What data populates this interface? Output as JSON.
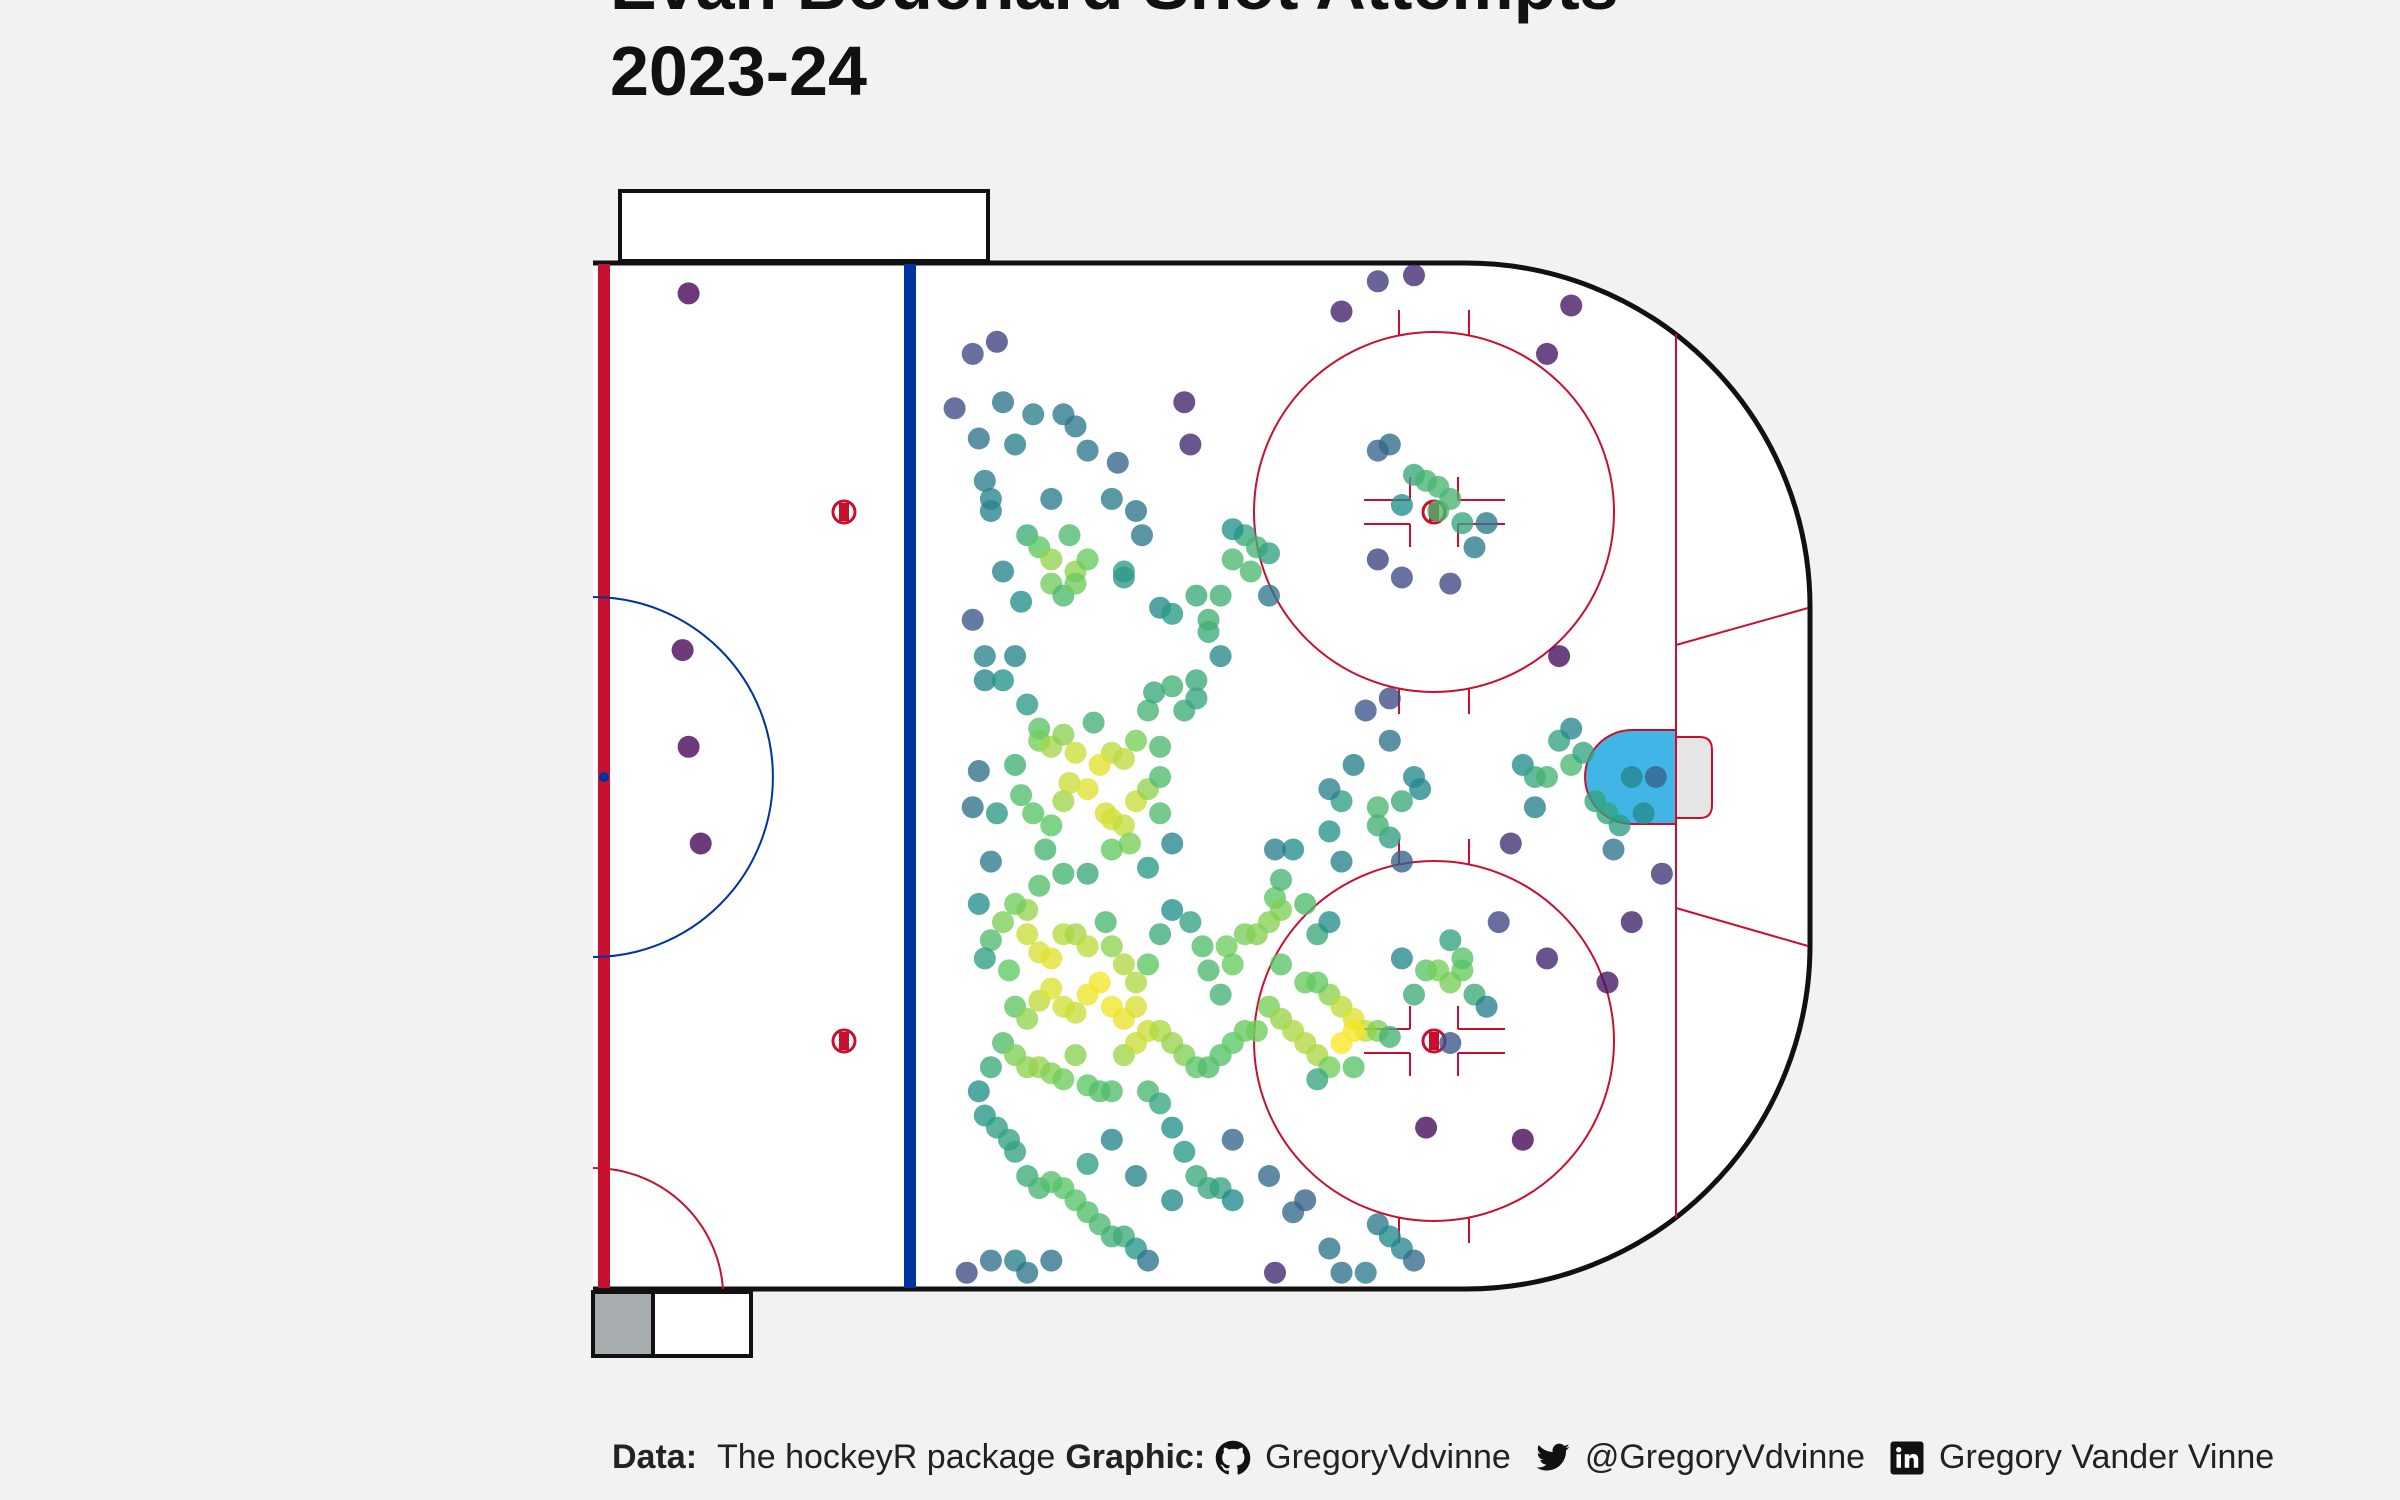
{
  "title_lines": [
    "Evan Bouchard Shot Attempts",
    "2023-24"
  ],
  "caption": {
    "data_label": "Data:",
    "data_value": "The hockeyR package",
    "graphic_label": "Graphic:",
    "github": "GregoryVdvinne",
    "twitter": "@GregoryVdvinne",
    "linkedin": "Gregory Vander Vinne"
  },
  "colors": {
    "background": "#f2f2f2",
    "ice": "#ffffff",
    "red_line": "#c8102e",
    "blue_line": "#0033a0",
    "crease": "#41b6e6",
    "boards": "#111111",
    "viridis_low": "#440154",
    "viridis_high": "#fde725"
  },
  "icons": [
    "github-icon",
    "twitter-icon",
    "linkedin-icon"
  ],
  "chart_data": {
    "type": "scatter",
    "x_unit": "ft",
    "y_unit": "ft",
    "xlim": [
      0,
      100
    ],
    "ylim": [
      -42.5,
      42.5
    ],
    "color_encoding": "local shot density (viridis)",
    "points": [
      [
        7,
        40
      ],
      [
        7,
        2.5
      ],
      [
        8,
        -5.5
      ],
      [
        6.5,
        10.5
      ],
      [
        29,
        30.5
      ],
      [
        30.5,
        35
      ],
      [
        32.5,
        36
      ],
      [
        31,
        28
      ],
      [
        34,
        27.5
      ],
      [
        31.5,
        24.5
      ],
      [
        32,
        23
      ],
      [
        33,
        31
      ],
      [
        35.5,
        30
      ],
      [
        38,
        30
      ],
      [
        39,
        29
      ],
      [
        37,
        23
      ],
      [
        40,
        27
      ],
      [
        42.5,
        26
      ],
      [
        38.5,
        20
      ],
      [
        35,
        20
      ],
      [
        36,
        19
      ],
      [
        37,
        18
      ],
      [
        39,
        17
      ],
      [
        44.5,
        20
      ],
      [
        48,
        31
      ],
      [
        48.5,
        27.5
      ],
      [
        53,
        20
      ],
      [
        54,
        19
      ],
      [
        52,
        20.5
      ],
      [
        55,
        18.5
      ],
      [
        42,
        23
      ],
      [
        44,
        22
      ],
      [
        32,
        22
      ],
      [
        33,
        17
      ],
      [
        34.5,
        14.5
      ],
      [
        37,
        16
      ],
      [
        38,
        15
      ],
      [
        39,
        16
      ],
      [
        40,
        18
      ],
      [
        43,
        17
      ],
      [
        43,
        16.5
      ],
      [
        46,
        14
      ],
      [
        47,
        13.5
      ],
      [
        30.5,
        13
      ],
      [
        31.5,
        10
      ],
      [
        31.5,
        8
      ],
      [
        33,
        8
      ],
      [
        34,
        10
      ],
      [
        35,
        6
      ],
      [
        36,
        4
      ],
      [
        36,
        3
      ],
      [
        37,
        2.5
      ],
      [
        38,
        3.5
      ],
      [
        40.5,
        4.5
      ],
      [
        42,
        2
      ],
      [
        43,
        1.5
      ],
      [
        44,
        3
      ],
      [
        46,
        2.5
      ],
      [
        45,
        5.5
      ],
      [
        45.5,
        7
      ],
      [
        47,
        7.5
      ],
      [
        48,
        5.5
      ],
      [
        49,
        6.5
      ],
      [
        49,
        8
      ],
      [
        51,
        10
      ],
      [
        50,
        12
      ],
      [
        50,
        13
      ],
      [
        51,
        15
      ],
      [
        49,
        15
      ],
      [
        52,
        18
      ],
      [
        53.5,
        17
      ],
      [
        55,
        15
      ],
      [
        31,
        0.5
      ],
      [
        30.5,
        -2.5
      ],
      [
        32,
        -7
      ],
      [
        32.5,
        -3
      ],
      [
        34,
        1
      ],
      [
        34.5,
        -1.5
      ],
      [
        35.5,
        -3
      ],
      [
        36.5,
        -6
      ],
      [
        37,
        -4
      ],
      [
        38,
        -2
      ],
      [
        38.5,
        -0.5
      ],
      [
        39,
        2
      ],
      [
        40,
        -1
      ],
      [
        41,
        1
      ],
      [
        41.5,
        -3
      ],
      [
        42,
        -3.5
      ],
      [
        43,
        -4
      ],
      [
        43.5,
        -5.5
      ],
      [
        44,
        -2
      ],
      [
        45,
        -1
      ],
      [
        46,
        0
      ],
      [
        46,
        -3
      ],
      [
        47,
        -5.5
      ],
      [
        45,
        -7.5
      ],
      [
        42,
        -6
      ],
      [
        40,
        -8
      ],
      [
        38,
        -8
      ],
      [
        36,
        -9
      ],
      [
        35,
        -11
      ],
      [
        33,
        -12
      ],
      [
        32,
        -13.5
      ],
      [
        31,
        -10.5
      ],
      [
        31.5,
        -15
      ],
      [
        34,
        -10.5
      ],
      [
        35,
        -13
      ],
      [
        36,
        -14.5
      ],
      [
        37,
        -15
      ],
      [
        38,
        -13
      ],
      [
        39,
        -13
      ],
      [
        40,
        -14
      ],
      [
        41.5,
        -12
      ],
      [
        42,
        -14
      ],
      [
        43,
        -15.5
      ],
      [
        44,
        -17
      ],
      [
        45,
        -15.5
      ],
      [
        46,
        -13
      ],
      [
        47,
        -11
      ],
      [
        48.5,
        -12
      ],
      [
        49.5,
        -14
      ],
      [
        50,
        -16
      ],
      [
        51,
        -18
      ],
      [
        51.5,
        -14
      ],
      [
        52,
        -15.5
      ],
      [
        53,
        -13
      ],
      [
        54,
        -13
      ],
      [
        55,
        -12
      ],
      [
        55.5,
        -10
      ],
      [
        57,
        -6
      ],
      [
        55.5,
        -6
      ],
      [
        56,
        -8.5
      ],
      [
        56,
        -11
      ],
      [
        58,
        -10.5
      ],
      [
        59,
        -13
      ],
      [
        60,
        -12
      ],
      [
        56,
        -15.5
      ],
      [
        33.5,
        -16
      ],
      [
        34,
        -19
      ],
      [
        35,
        -20
      ],
      [
        36,
        -18.5
      ],
      [
        37,
        -17.5
      ],
      [
        38,
        -19
      ],
      [
        39,
        -19.5
      ],
      [
        40,
        -18
      ],
      [
        41,
        -17
      ],
      [
        42,
        -19
      ],
      [
        43,
        -20
      ],
      [
        44,
        -19
      ],
      [
        45,
        -21
      ],
      [
        46,
        -21
      ],
      [
        47,
        -22
      ],
      [
        48,
        -23
      ],
      [
        49,
        -24
      ],
      [
        50,
        -24
      ],
      [
        51,
        -23
      ],
      [
        52,
        -22
      ],
      [
        53,
        -21
      ],
      [
        54,
        -21
      ],
      [
        55,
        -19
      ],
      [
        56,
        -20
      ],
      [
        57,
        -21
      ],
      [
        58,
        -22
      ],
      [
        59,
        -23
      ],
      [
        33,
        -22
      ],
      [
        34,
        -23
      ],
      [
        35,
        -24
      ],
      [
        36,
        -24
      ],
      [
        37,
        -24.5
      ],
      [
        38,
        -25
      ],
      [
        39,
        -23
      ],
      [
        40,
        -25.5
      ],
      [
        41,
        -26
      ],
      [
        42,
        -26
      ],
      [
        43,
        -23
      ],
      [
        44,
        -22
      ],
      [
        45,
        -26
      ],
      [
        46,
        -27
      ],
      [
        47,
        -29
      ],
      [
        48,
        -31
      ],
      [
        49,
        -33
      ],
      [
        50,
        -34
      ],
      [
        51,
        -34
      ],
      [
        52,
        -35
      ],
      [
        32,
        -24
      ],
      [
        31,
        -26
      ],
      [
        31.5,
        -28
      ],
      [
        32.5,
        -29
      ],
      [
        33.5,
        -30
      ],
      [
        34,
        -31
      ],
      [
        35,
        -33
      ],
      [
        36,
        -34
      ],
      [
        37,
        -33.5
      ],
      [
        38,
        -34
      ],
      [
        39,
        -35
      ],
      [
        40,
        -36
      ],
      [
        41,
        -37
      ],
      [
        42,
        -38
      ],
      [
        43,
        -38
      ],
      [
        44,
        -39
      ],
      [
        45,
        -40
      ],
      [
        32,
        -40
      ],
      [
        34,
        -40
      ],
      [
        35,
        -41
      ],
      [
        37,
        -40
      ],
      [
        30,
        -41
      ],
      [
        40,
        -32
      ],
      [
        42,
        -30
      ],
      [
        44,
        -33
      ],
      [
        47,
        -35
      ],
      [
        52,
        -30
      ],
      [
        55,
        -33
      ],
      [
        57,
        -36
      ],
      [
        60,
        -39
      ],
      [
        61,
        -41
      ],
      [
        55.5,
        -41
      ],
      [
        58,
        -35
      ],
      [
        58,
        -17
      ],
      [
        60,
        -18
      ],
      [
        61,
        -19
      ],
      [
        62,
        -20
      ],
      [
        63,
        -21
      ],
      [
        64,
        -21
      ],
      [
        65,
        -21.5
      ],
      [
        66,
        -15
      ],
      [
        67,
        -18
      ],
      [
        68,
        -16
      ],
      [
        69,
        -16
      ],
      [
        70,
        -17
      ],
      [
        71,
        -16
      ],
      [
        72,
        -18
      ],
      [
        73,
        -19
      ],
      [
        70,
        -13.5
      ],
      [
        71,
        -15
      ],
      [
        59,
        -17
      ],
      [
        60,
        -24
      ],
      [
        62,
        -24
      ],
      [
        64,
        -37
      ],
      [
        65,
        -38
      ],
      [
        66,
        -39
      ],
      [
        67,
        -40
      ],
      [
        63,
        -41
      ],
      [
        68,
        -29
      ],
      [
        70,
        -22
      ],
      [
        74,
        -12
      ],
      [
        76,
        -30
      ],
      [
        78,
        -15
      ],
      [
        62,
        -21
      ],
      [
        61,
        -22
      ],
      [
        59,
        -25
      ],
      [
        64,
        27
      ],
      [
        65,
        27.5
      ],
      [
        66,
        22.5
      ],
      [
        67,
        25
      ],
      [
        68,
        24.5
      ],
      [
        69,
        24
      ],
      [
        70,
        23
      ],
      [
        71,
        21
      ],
      [
        72,
        19
      ],
      [
        64,
        18
      ],
      [
        66,
        16.5
      ],
      [
        70,
        16
      ],
      [
        65,
        6.5
      ],
      [
        62,
        1
      ],
      [
        67,
        0
      ],
      [
        65,
        3
      ],
      [
        67.5,
        -1
      ],
      [
        66,
        -2
      ],
      [
        65,
        -5
      ],
      [
        61,
        -7
      ],
      [
        64,
        -2.5
      ],
      [
        61,
        -2
      ],
      [
        60,
        -1
      ],
      [
        60,
        -4.5
      ],
      [
        66,
        -7
      ],
      [
        64,
        -4
      ],
      [
        61,
        38.5
      ],
      [
        64,
        41
      ],
      [
        67,
        41.5
      ],
      [
        80,
        39
      ],
      [
        78,
        35
      ],
      [
        63,
        5.5
      ],
      [
        76,
        1
      ],
      [
        77,
        0
      ],
      [
        78,
        0
      ],
      [
        79,
        3
      ],
      [
        80,
        1
      ],
      [
        81,
        2
      ],
      [
        82,
        -2
      ],
      [
        83,
        -3
      ],
      [
        85,
        0
      ],
      [
        86,
        -3
      ],
      [
        87,
        0
      ],
      [
        87.5,
        -8
      ],
      [
        83.5,
        -6
      ],
      [
        85,
        -12
      ],
      [
        83,
        -17
      ],
      [
        84,
        -4
      ],
      [
        75,
        -5.5
      ],
      [
        77,
        -2.5
      ],
      [
        69,
        22
      ],
      [
        73,
        21
      ],
      [
        79,
        10
      ],
      [
        80,
        4
      ]
    ]
  }
}
